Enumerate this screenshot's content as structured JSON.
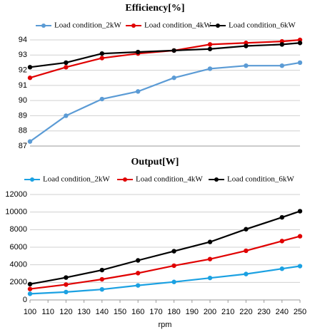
{
  "chart_data": [
    {
      "type": "line",
      "title": "Efficiency[%]",
      "x": [
        100,
        120,
        140,
        160,
        180,
        200,
        220,
        240,
        250
      ],
      "xlim": [
        100,
        250
      ],
      "ylim": [
        87,
        94
      ],
      "yticks": [
        87,
        88,
        89,
        90,
        91,
        92,
        93,
        94
      ],
      "grid": true,
      "series": [
        {
          "name": "Load condition_2kW",
          "color": "#5b9bd5",
          "values": [
            87.3,
            89.0,
            90.1,
            90.6,
            91.5,
            92.1,
            92.3,
            92.3,
            92.5
          ]
        },
        {
          "name": "Load condition_4kW",
          "color": "#e00000",
          "values": [
            91.5,
            92.2,
            92.8,
            93.1,
            93.3,
            93.7,
            93.8,
            93.9,
            94.0
          ]
        },
        {
          "name": "Load condition_6kW",
          "color": "#000000",
          "values": [
            92.2,
            92.5,
            93.1,
            93.2,
            93.3,
            93.4,
            93.6,
            93.7,
            93.8
          ]
        }
      ]
    },
    {
      "type": "line",
      "title": "Output[W]",
      "x_label": "rpm",
      "x": [
        100,
        120,
        140,
        160,
        180,
        200,
        220,
        240,
        250
      ],
      "xlim": [
        100,
        250
      ],
      "xticks": [
        100,
        110,
        120,
        130,
        140,
        150,
        160,
        170,
        180,
        190,
        200,
        210,
        220,
        230,
        240,
        250
      ],
      "ylim": [
        0,
        12000
      ],
      "yticks": [
        0,
        2000,
        4000,
        6000,
        8000,
        10000,
        12000
      ],
      "grid": true,
      "series": [
        {
          "name": "Load condition_2kW",
          "color": "#1ba1e2",
          "values": [
            700,
            900,
            1200,
            1650,
            2050,
            2500,
            2950,
            3550,
            3850
          ]
        },
        {
          "name": "Load condition_4kW",
          "color": "#e00000",
          "values": [
            1250,
            1750,
            2350,
            3050,
            3900,
            4650,
            5600,
            6700,
            7250
          ]
        },
        {
          "name": "Load condition_6kW",
          "color": "#000000",
          "values": [
            1800,
            2550,
            3400,
            4500,
            5550,
            6600,
            8050,
            9400,
            10100
          ]
        }
      ]
    }
  ]
}
